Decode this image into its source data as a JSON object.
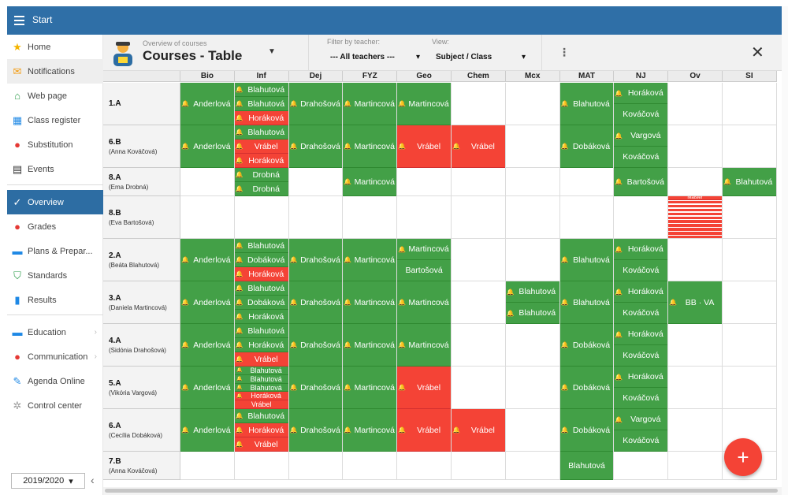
{
  "topbar": {
    "title": "Start"
  },
  "sidebar": {
    "items": [
      {
        "label": "Home",
        "icon": "star-icon",
        "glyph": "★",
        "color": "#f4b400"
      },
      {
        "label": "Notifications",
        "icon": "envelope-icon",
        "glyph": "✉",
        "color": "#f39c12",
        "highlight": true
      },
      {
        "label": "Web page",
        "icon": "house-icon",
        "glyph": "⌂",
        "color": "#2e9c4b"
      },
      {
        "label": "Class register",
        "icon": "book-icon",
        "glyph": "▦",
        "color": "#1e88e5"
      },
      {
        "label": "Substitution",
        "icon": "person-icon",
        "glyph": "●",
        "color": "#e53935"
      },
      {
        "label": "Events",
        "icon": "calendar-icon",
        "glyph": "▤",
        "color": "#333333"
      },
      {
        "label": "Overview",
        "icon": "check-icon",
        "glyph": "✓",
        "color": "#ffffff",
        "active": true
      },
      {
        "label": "Grades",
        "icon": "grades-icon",
        "glyph": "●",
        "color": "#e53935"
      },
      {
        "label": "Plans & Prepar...",
        "icon": "briefcase-icon",
        "glyph": "▬",
        "color": "#1e88e5"
      },
      {
        "label": "Standards",
        "icon": "shield-icon",
        "glyph": "⛉",
        "color": "#2e9c4b"
      },
      {
        "label": "Results",
        "icon": "bar-chart-icon",
        "glyph": "▮",
        "color": "#1e88e5"
      },
      {
        "label": "Education",
        "icon": "education-icon",
        "glyph": "▬",
        "color": "#1e88e5",
        "chevron": true
      },
      {
        "label": "Communication",
        "icon": "chat-icon",
        "glyph": "●",
        "color": "#e53935",
        "chevron": true
      },
      {
        "label": "Agenda Online",
        "icon": "pen-icon",
        "glyph": "✎",
        "color": "#1e88e5"
      },
      {
        "label": "Control center",
        "icon": "gear-icon",
        "glyph": "✲",
        "color": "#999999"
      }
    ],
    "year": "2019/2020"
  },
  "header": {
    "subtitle": "Overview of courses",
    "title": "Courses - Table",
    "filter_label": "Filter by teacher:",
    "filter_value": "--- All teachers ---",
    "view_label": "View:",
    "view_value": "Subject / Class"
  },
  "columns": [
    "Bio",
    "Inf",
    "Dej",
    "FYZ",
    "Geo",
    "Chem",
    "Mcx",
    "MAT",
    "NJ",
    "Ov",
    "SI"
  ],
  "rows": [
    {
      "class": "1.A",
      "teacher": "",
      "cells": [
        [
          {
            "t": "Anderlová",
            "c": "g"
          }
        ],
        [
          {
            "t": "Blahutová",
            "c": "g"
          },
          {
            "t": "Blahutová",
            "c": "g"
          },
          {
            "t": "Horáková",
            "c": "r"
          }
        ],
        [
          {
            "t": "Drahošová",
            "c": "g"
          }
        ],
        [
          {
            "t": "Martincová",
            "c": "g"
          }
        ],
        [
          {
            "t": "Martincová",
            "c": "g"
          }
        ],
        [],
        [],
        [
          {
            "t": "Blahutová",
            "c": "g"
          }
        ],
        [
          {
            "t": "Horáková",
            "c": "g"
          },
          {
            "t": "Kováčová",
            "c": "g",
            "nb": true
          }
        ],
        [],
        []
      ]
    },
    {
      "class": "6.B",
      "teacher": "(Anna Kováčová)",
      "cells": [
        [
          {
            "t": "Anderlová",
            "c": "g"
          }
        ],
        [
          {
            "t": "Blahutová",
            "c": "g"
          },
          {
            "t": "Vrábel",
            "c": "r"
          },
          {
            "t": "Horáková",
            "c": "r"
          }
        ],
        [
          {
            "t": "Drahošová",
            "c": "g"
          }
        ],
        [
          {
            "t": "Martincová",
            "c": "g"
          }
        ],
        [
          {
            "t": "Vrábel",
            "c": "r"
          }
        ],
        [
          {
            "t": "Vrábel",
            "c": "r"
          }
        ],
        [],
        [
          {
            "t": "Dobáková",
            "c": "g"
          }
        ],
        [
          {
            "t": "Vargová",
            "c": "g"
          },
          {
            "t": "Kováčová",
            "c": "g",
            "nb": true
          }
        ],
        [],
        []
      ]
    },
    {
      "class": "8.A",
      "teacher": "(Ema Drobná)",
      "cells": [
        [],
        [
          {
            "t": "Drobná",
            "c": "g"
          },
          {
            "t": "Drobná",
            "c": "g"
          }
        ],
        [],
        [
          {
            "t": "Martincová",
            "c": "g"
          }
        ],
        [],
        [],
        [],
        [],
        [
          {
            "t": "Bartošová",
            "c": "g"
          }
        ],
        [],
        [
          {
            "t": "Blahutová",
            "c": "g"
          }
        ]
      ]
    },
    {
      "class": "8.B",
      "teacher": "(Eva Bartošová)",
      "cells": [
        [],
        [],
        [],
        [],
        [],
        [],
        [],
        [],
        [],
        [
          {
            "t": "Maisler",
            "c": "r",
            "micro": true
          }
        ],
        []
      ]
    },
    {
      "class": "2.A",
      "teacher": "(Beáta Blahutová)",
      "cells": [
        [
          {
            "t": "Anderlová",
            "c": "g"
          }
        ],
        [
          {
            "t": "Blahutová",
            "c": "g"
          },
          {
            "t": "Dobáková",
            "c": "g"
          },
          {
            "t": "Horáková",
            "c": "r"
          }
        ],
        [
          {
            "t": "Drahošová",
            "c": "g"
          }
        ],
        [
          {
            "t": "Martincová",
            "c": "g"
          }
        ],
        [
          {
            "t": "Martincová",
            "c": "g"
          },
          {
            "t": "Bartošová",
            "c": "g",
            "nb": true
          }
        ],
        [],
        [],
        [
          {
            "t": "Blahutová",
            "c": "g"
          }
        ],
        [
          {
            "t": "Horáková",
            "c": "g"
          },
          {
            "t": "Kováčová",
            "c": "g",
            "nb": true
          }
        ],
        [],
        []
      ]
    },
    {
      "class": "3.A",
      "teacher": "(Daniela Martincová)",
      "cells": [
        [
          {
            "t": "Anderlová",
            "c": "g"
          }
        ],
        [
          {
            "t": "Blahutová",
            "c": "g"
          },
          {
            "t": "Dobáková",
            "c": "g"
          },
          {
            "t": "Horáková",
            "c": "g"
          }
        ],
        [
          {
            "t": "Drahošová",
            "c": "g"
          }
        ],
        [
          {
            "t": "Martincová",
            "c": "g"
          }
        ],
        [
          {
            "t": "Martincová",
            "c": "g"
          }
        ],
        [],
        [
          {
            "t": "Blahutová",
            "c": "g"
          },
          {
            "t": "Blahutová",
            "c": "g"
          }
        ],
        [
          {
            "t": "Blahutová",
            "c": "g"
          }
        ],
        [
          {
            "t": "Horáková",
            "c": "g"
          },
          {
            "t": "Kováčová",
            "c": "g",
            "nb": true
          }
        ],
        [
          {
            "t": "BB · VA",
            "c": "g"
          }
        ],
        []
      ]
    },
    {
      "class": "4.A",
      "teacher": "(Sidónia Drahošová)",
      "cells": [
        [
          {
            "t": "Anderlová",
            "c": "g"
          }
        ],
        [
          {
            "t": "Blahutová",
            "c": "g"
          },
          {
            "t": "Horáková",
            "c": "g"
          },
          {
            "t": "Vrábel",
            "c": "r"
          }
        ],
        [
          {
            "t": "Drahošová",
            "c": "g"
          }
        ],
        [
          {
            "t": "Martincová",
            "c": "g"
          }
        ],
        [
          {
            "t": "Martincová",
            "c": "g"
          }
        ],
        [],
        [],
        [
          {
            "t": "Dobáková",
            "c": "g"
          }
        ],
        [
          {
            "t": "Horáková",
            "c": "g"
          },
          {
            "t": "Kováčová",
            "c": "g",
            "nb": true
          }
        ],
        [],
        []
      ]
    },
    {
      "class": "5.A",
      "teacher": "(Vikória Vargová)",
      "cells": [
        [
          {
            "t": "Anderlová",
            "c": "g"
          }
        ],
        [
          {
            "t": "Blahutová",
            "c": "g",
            "sm": true
          },
          {
            "t": "Blahutová",
            "c": "g",
            "sm": true
          },
          {
            "t": "Blahutová",
            "c": "g",
            "sm": true
          },
          {
            "t": "Horáková",
            "c": "r",
            "sm": true
          },
          {
            "t": "Vrábel",
            "c": "r",
            "sm": true,
            "nb": true
          }
        ],
        [
          {
            "t": "Drahošová",
            "c": "g"
          }
        ],
        [
          {
            "t": "Martincová",
            "c": "g"
          }
        ],
        [
          {
            "t": "Vrábel",
            "c": "r"
          }
        ],
        [],
        [],
        [
          {
            "t": "Dobáková",
            "c": "g"
          }
        ],
        [
          {
            "t": "Horáková",
            "c": "g"
          },
          {
            "t": "Kováčová",
            "c": "g",
            "nb": true
          }
        ],
        [],
        []
      ]
    },
    {
      "class": "6.A",
      "teacher": "(Cecília Dobáková)",
      "cells": [
        [
          {
            "t": "Anderlová",
            "c": "g"
          }
        ],
        [
          {
            "t": "Blahutová",
            "c": "g"
          },
          {
            "t": "Horáková",
            "c": "r"
          },
          {
            "t": "Vrábel",
            "c": "r"
          }
        ],
        [
          {
            "t": "Drahošová",
            "c": "g"
          }
        ],
        [
          {
            "t": "Martincová",
            "c": "g"
          }
        ],
        [
          {
            "t": "Vrábel",
            "c": "r"
          }
        ],
        [
          {
            "t": "Vrábel",
            "c": "r"
          }
        ],
        [],
        [
          {
            "t": "Dobáková",
            "c": "g"
          }
        ],
        [
          {
            "t": "Vargová",
            "c": "g"
          },
          {
            "t": "Kováčová",
            "c": "g",
            "nb": true
          }
        ],
        [],
        []
      ]
    },
    {
      "class": "7.B",
      "teacher": "(Anna Kováčová)",
      "cells": [
        [],
        [],
        [],
        [],
        [],
        [],
        [],
        [
          {
            "t": "Blahutová",
            "c": "g",
            "nb": true
          }
        ],
        [],
        [],
        []
      ]
    }
  ],
  "fab": {
    "label": "+"
  },
  "close_label": "✕"
}
